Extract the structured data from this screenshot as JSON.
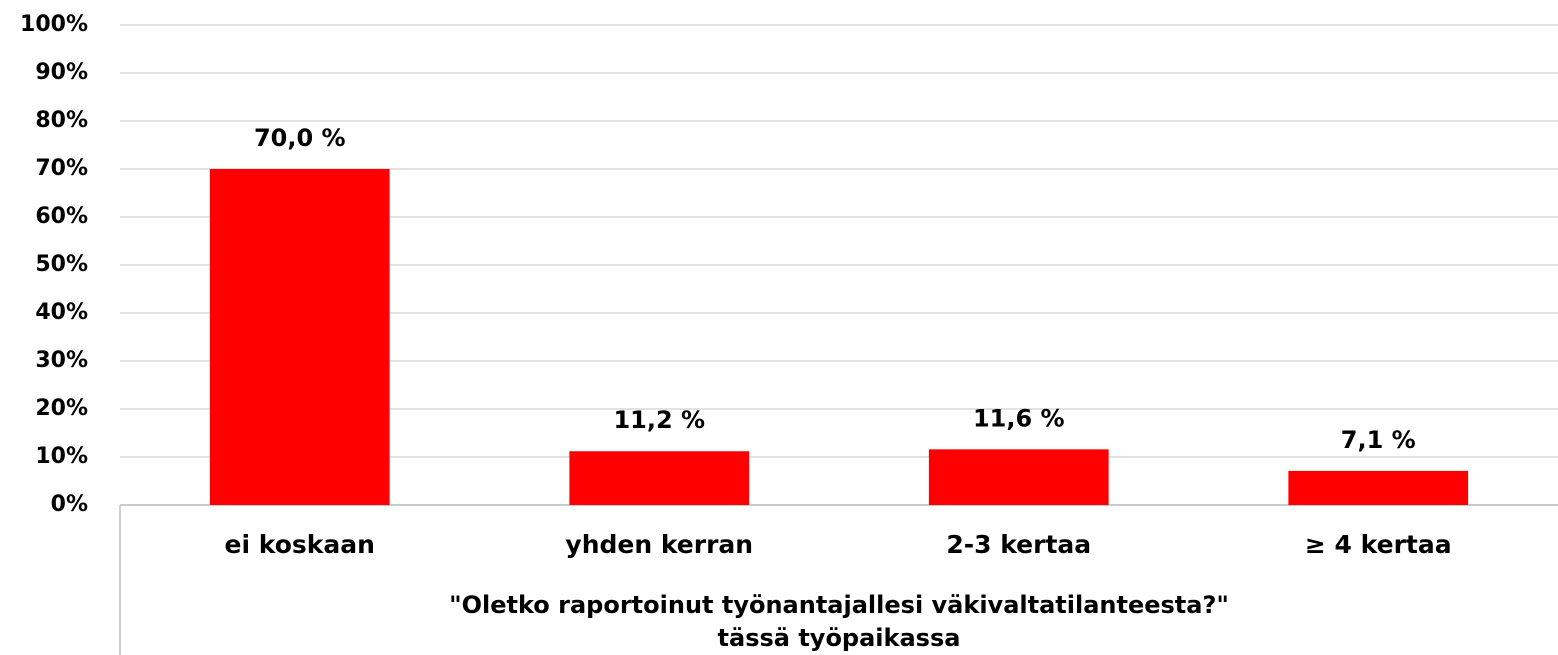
{
  "chart_data": {
    "type": "bar",
    "categories": [
      "ei koskaan",
      "yhden kerran",
      "2-3 kertaa",
      "≥ 4 kertaa"
    ],
    "values": [
      70.0,
      11.2,
      11.6,
      7.1
    ],
    "value_labels": [
      "70,0 %",
      "11,2 %",
      "11,6 %",
      "7,1 %"
    ],
    "color": "#ff0000",
    "xlabel": [
      "\"Oletko raportoinut työnantajallesi väkivaltatilanteesta?\"",
      "tässä työpaikassa"
    ],
    "ylim": [
      0,
      100
    ],
    "yticks": [
      {
        "value": 0,
        "label": "0%"
      },
      {
        "value": 10,
        "label": "10%"
      },
      {
        "value": 20,
        "label": "20%"
      },
      {
        "value": 30,
        "label": "30%"
      },
      {
        "value": 40,
        "label": "40%"
      },
      {
        "value": 50,
        "label": "50%"
      },
      {
        "value": 60,
        "label": "60%"
      },
      {
        "value": 70,
        "label": "70%"
      },
      {
        "value": 80,
        "label": "80%"
      },
      {
        "value": 90,
        "label": "90%"
      },
      {
        "value": 100,
        "label": "100%"
      }
    ],
    "grid": true
  }
}
